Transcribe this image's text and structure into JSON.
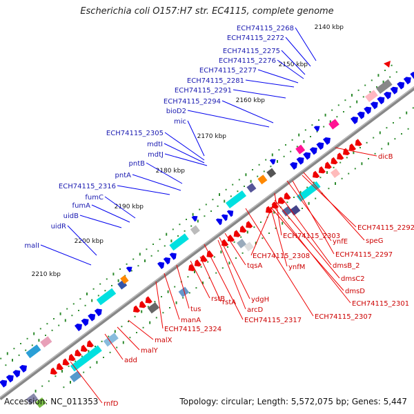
{
  "title": "Escherichia coli O157:H7 str. EC4115, complete genome",
  "footer": {
    "accession": "Accession: NC_011353",
    "summary": "Topology: circular; Length: 5,572,075 bp; Genes: 5,447"
  },
  "colors": {
    "forward": "#0000ee",
    "reverse": "#ee0000",
    "forward_label": "#1a1ab0",
    "reverse_label": "#cc0000",
    "backbone": "#888888",
    "tick": "#2e8b2e"
  },
  "kbp_ticks": [
    "2140 kbp",
    "2150 kbp",
    "2160 kbp",
    "2170 kbp",
    "2180 kbp",
    "2190 kbp",
    "2200 kbp",
    "2210 kbp"
  ],
  "forward_genes": [
    "ECH74115_2268",
    "ECH74115_2272",
    "ECH74115_2275",
    "ECH74115_2276",
    "ECH74115_2277",
    "ECH74115_2281",
    "ECH74115_2291",
    "ECH74115_2294",
    "bioD2",
    "mic",
    "ECH74115_2305",
    "mdtI",
    "mdtJ",
    "pntB",
    "pntA",
    "ECH74115_2316",
    "fumC",
    "fumA",
    "uidB",
    "uidR",
    "malI"
  ],
  "reverse_genes": [
    "dicB",
    "ECH74115_2292",
    "speG",
    "ynfE",
    "ECH74115_2303",
    "ECH74115_2297",
    "dmsB_2",
    "ECH74115_2308",
    "dmsC2",
    "ynfM",
    "dmsD",
    "tqsA",
    "ECH74115_2301",
    "ydgH",
    "arcD",
    "rstA",
    "ECH74115_2307",
    "rstB",
    "ECH74115_2317",
    "tus",
    "manA",
    "ECH74115_2324",
    "malX",
    "malY",
    "add",
    "rnfD"
  ]
}
